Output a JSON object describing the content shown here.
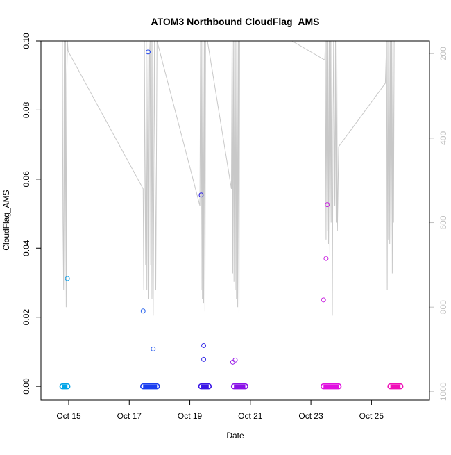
{
  "chart_data": {
    "type": "scatter",
    "title": "ATOM3 Northbound CloudFlag_AMS",
    "xlabel": "Date",
    "ylabel": "CloudFlag_AMS",
    "xlim": [
      "2016-10-14T02:00",
      "2016-10-26T22:00"
    ],
    "ylim": [
      -0.004,
      0.1
    ],
    "x_ticks": [
      "2016-10-15",
      "2016-10-17",
      "2016-10-19",
      "2016-10-21",
      "2016-10-23",
      "2016-10-25"
    ],
    "x_tick_labels": [
      "Oct 15",
      "Oct 17",
      "Oct 19",
      "Oct 21",
      "Oct 23",
      "Oct 25"
    ],
    "y_ticks": [
      0.0,
      0.02,
      0.04,
      0.06,
      0.08,
      0.1
    ],
    "y_tick_labels": [
      "0.00",
      "0.02",
      "0.04",
      "0.06",
      "0.08",
      "0.10"
    ],
    "right_axis": {
      "ticks": [
        200,
        400,
        600,
        800,
        1000
      ],
      "tick_labels": [
        "200",
        "400",
        "600",
        "800",
        "1000"
      ],
      "ylim": [
        1020,
        170
      ],
      "color": "#c0c0c0"
    },
    "flight_bands": [
      {
        "start": "2016-10-14T19:00",
        "end": "2016-10-14T23:00",
        "value": 0.0,
        "color": "#00a5e8"
      },
      {
        "start": "2016-10-17T11:00",
        "end": "2016-10-17T22:00",
        "value": 0.0,
        "color": "#1a3ef0"
      },
      {
        "start": "2016-10-19T09:00",
        "end": "2016-10-19T15:00",
        "value": 0.0,
        "color": "#3a16e6"
      },
      {
        "start": "2016-10-20T11:00",
        "end": "2016-10-20T20:00",
        "value": 0.0,
        "color": "#8a10e8"
      },
      {
        "start": "2016-10-23T10:00",
        "end": "2016-10-23T22:00",
        "value": 0.0,
        "color": "#e010e0"
      },
      {
        "start": "2016-10-25T15:00",
        "end": "2016-10-25T23:00",
        "value": 0.0,
        "color": "#f010b8"
      }
    ],
    "points": [
      {
        "x": "2016-10-14T23:00",
        "y": 0.0312,
        "color": "#22a4e6"
      },
      {
        "x": "2016-10-17T11:00",
        "y": 0.0218,
        "color": "#2a66ee"
      },
      {
        "x": "2016-10-17T15:00",
        "y": 0.0968,
        "color": "#2a4cee"
      },
      {
        "x": "2016-10-17T19:00",
        "y": 0.0108,
        "color": "#2a5cee"
      },
      {
        "x": "2016-10-19T09:00",
        "y": 0.0554,
        "color": "#2a1ee6"
      },
      {
        "x": "2016-10-19T11:00",
        "y": 0.0118,
        "color": "#3a30e8"
      },
      {
        "x": "2016-10-19T11:00",
        "y": 0.0078,
        "color": "#3a30e8"
      },
      {
        "x": "2016-10-20T10:00",
        "y": 0.007,
        "color": "#9a20e8"
      },
      {
        "x": "2016-10-20T12:00",
        "y": 0.0076,
        "color": "#9a20e8"
      },
      {
        "x": "2016-10-23T10:00",
        "y": 0.025,
        "color": "#c820e0"
      },
      {
        "x": "2016-10-23T12:00",
        "y": 0.037,
        "color": "#c820e0"
      },
      {
        "x": "2016-10-23T13:00",
        "y": 0.0526,
        "color": "#c820e0"
      }
    ],
    "altitude_profile": {
      "color": "#c8c8c8",
      "segments": [
        [
          [
            "2016-10-14T19:00",
            160
          ],
          [
            "2016-10-14T19:30",
            600
          ],
          [
            "2016-10-14T20:00",
            760
          ],
          [
            "2016-10-14T20:30",
            160
          ],
          [
            "2016-10-14T21:00",
            780
          ],
          [
            "2016-10-14T21:30",
            160
          ],
          [
            "2016-10-14T22:00",
            800
          ],
          [
            "2016-10-14T22:30",
            250
          ],
          [
            "2016-10-14T23:00",
            160
          ],
          [
            "2016-10-14T23:30",
            194
          ],
          [
            "2016-10-17T11:00",
            520
          ],
          [
            "2016-10-17T11:30",
            760
          ],
          [
            "2016-10-17T12:00",
            160
          ],
          [
            "2016-10-17T12:30",
            500
          ],
          [
            "2016-10-17T13:00",
            700
          ],
          [
            "2016-10-17T13:30",
            160
          ],
          [
            "2016-10-17T14:00",
            760
          ],
          [
            "2016-10-17T14:30",
            400
          ],
          [
            "2016-10-17T15:00",
            160
          ],
          [
            "2016-10-17T15:30",
            780
          ],
          [
            "2016-10-17T16:00",
            200
          ],
          [
            "2016-10-17T16:30",
            160
          ],
          [
            "2016-10-17T17:00",
            700
          ],
          [
            "2016-10-17T17:30",
            160
          ],
          [
            "2016-10-17T18:00",
            780
          ],
          [
            "2016-10-17T18:30",
            160
          ],
          [
            "2016-10-17T19:00",
            820
          ],
          [
            "2016-10-17T20:00",
            160
          ],
          [
            "2016-10-17T21:00",
            760
          ],
          [
            "2016-10-17T22:00",
            160
          ],
          [
            "2016-10-19T08:00",
            560
          ],
          [
            "2016-10-19T08:30",
            160
          ],
          [
            "2016-10-19T09:00",
            760
          ],
          [
            "2016-10-19T09:30",
            160
          ],
          [
            "2016-10-19T10:00",
            780
          ],
          [
            "2016-10-19T10:30",
            160
          ],
          [
            "2016-10-19T11:00",
            790
          ],
          [
            "2016-10-19T11:30",
            160
          ],
          [
            "2016-10-19T12:00",
            810
          ],
          [
            "2016-10-19T12:30",
            160
          ],
          [
            "2016-10-19T14:00",
            160
          ],
          [
            "2016-10-20T09:00",
            520
          ],
          [
            "2016-10-20T09:30",
            160
          ],
          [
            "2016-10-20T10:00",
            720
          ],
          [
            "2016-10-20T10:30",
            160
          ],
          [
            "2016-10-20T11:00",
            740
          ],
          [
            "2016-10-20T11:30",
            160
          ],
          [
            "2016-10-20T12:00",
            760
          ],
          [
            "2016-10-20T12:30",
            160
          ],
          [
            "2016-10-20T13:00",
            780
          ],
          [
            "2016-10-20T13:30",
            160
          ],
          [
            "2016-10-20T14:00",
            800
          ],
          [
            "2016-10-20T14:30",
            160
          ],
          [
            "2016-10-20T15:00",
            820
          ],
          [
            "2016-10-20T15:30",
            160
          ],
          [
            "2016-10-20T16:00",
            160
          ],
          [
            "2016-10-22T09:00",
            160
          ],
          [
            "2016-10-23T11:00",
            215
          ],
          [
            "2016-10-23T11:30",
            160
          ],
          [
            "2016-10-23T12:00",
            640
          ],
          [
            "2016-10-23T12:30",
            160
          ],
          [
            "2016-10-23T13:00",
            620
          ],
          [
            "2016-10-23T13:30",
            160
          ],
          [
            "2016-10-23T14:00",
            650
          ],
          [
            "2016-10-23T14:30",
            160
          ],
          [
            "2016-10-23T15:00",
            680
          ],
          [
            "2016-10-23T15:30",
            160
          ],
          [
            "2016-10-23T16:00",
            600
          ],
          [
            "2016-10-23T16:30",
            160
          ],
          [
            "2016-10-23T17:00",
            820
          ],
          [
            "2016-10-23T17:30",
            410
          ],
          [
            "2016-10-23T18:00",
            160
          ],
          [
            "2016-10-23T19:00",
            560
          ],
          [
            "2016-10-23T19:30",
            160
          ],
          [
            "2016-10-23T20:00",
            600
          ],
          [
            "2016-10-23T20:30",
            160
          ],
          [
            "2016-10-23T21:00",
            620
          ],
          [
            "2016-10-23T22:00",
            420
          ],
          [
            "2016-10-25T11:00",
            270
          ],
          [
            "2016-10-25T12:00",
            160
          ],
          [
            "2016-10-25T12:30",
            760
          ],
          [
            "2016-10-25T13:00",
            160
          ],
          [
            "2016-10-25T13:30",
            640
          ],
          [
            "2016-10-25T14:00",
            160
          ],
          [
            "2016-10-25T14:30",
            650
          ],
          [
            "2016-10-25T15:00",
            160
          ],
          [
            "2016-10-25T15:30",
            650
          ],
          [
            "2016-10-25T16:00",
            160
          ],
          [
            "2016-10-25T16:30",
            720
          ],
          [
            "2016-10-25T17:00",
            160
          ],
          [
            "2016-10-25T17:30",
            600
          ],
          [
            "2016-10-25T18:00",
            160
          ]
        ]
      ]
    }
  }
}
